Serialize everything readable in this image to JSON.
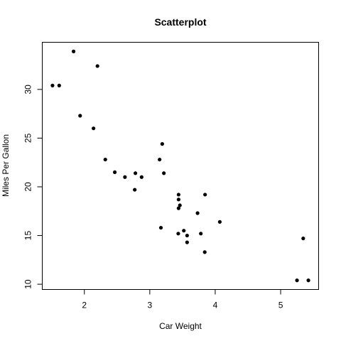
{
  "chart_data": {
    "type": "scatter",
    "title": "Scatterplot",
    "xlabel": "Car Weight",
    "ylabel": "Miles Per Gallon",
    "xlim": [
      1.513,
      5.424
    ],
    "ylim": [
      10.4,
      33.9
    ],
    "x_ticks": [
      2,
      3,
      4,
      5
    ],
    "y_ticks": [
      10,
      15,
      20,
      25,
      30
    ],
    "grid": false,
    "colors": {
      "points": "#000000",
      "axes": "#000000",
      "background": "#ffffff"
    },
    "points": [
      {
        "x": 2.62,
        "y": 21.0
      },
      {
        "x": 2.875,
        "y": 21.0
      },
      {
        "x": 2.32,
        "y": 22.8
      },
      {
        "x": 3.215,
        "y": 21.4
      },
      {
        "x": 3.44,
        "y": 18.7
      },
      {
        "x": 3.46,
        "y": 18.1
      },
      {
        "x": 3.57,
        "y": 14.3
      },
      {
        "x": 3.19,
        "y": 24.4
      },
      {
        "x": 3.15,
        "y": 22.8
      },
      {
        "x": 3.44,
        "y": 19.2
      },
      {
        "x": 3.44,
        "y": 17.8
      },
      {
        "x": 4.07,
        "y": 16.4
      },
      {
        "x": 3.73,
        "y": 17.3
      },
      {
        "x": 3.78,
        "y": 15.2
      },
      {
        "x": 5.25,
        "y": 10.4
      },
      {
        "x": 5.424,
        "y": 10.4
      },
      {
        "x": 5.345,
        "y": 14.7
      },
      {
        "x": 2.2,
        "y": 32.4
      },
      {
        "x": 1.615,
        "y": 30.4
      },
      {
        "x": 1.835,
        "y": 33.9
      },
      {
        "x": 2.465,
        "y": 21.5
      },
      {
        "x": 3.52,
        "y": 15.5
      },
      {
        "x": 3.435,
        "y": 15.2
      },
      {
        "x": 3.84,
        "y": 13.3
      },
      {
        "x": 3.845,
        "y": 19.2
      },
      {
        "x": 1.935,
        "y": 27.3
      },
      {
        "x": 2.14,
        "y": 26.0
      },
      {
        "x": 1.513,
        "y": 30.4
      },
      {
        "x": 3.17,
        "y": 15.8
      },
      {
        "x": 2.77,
        "y": 19.7
      },
      {
        "x": 3.57,
        "y": 15.0
      },
      {
        "x": 2.78,
        "y": 21.4
      }
    ]
  }
}
